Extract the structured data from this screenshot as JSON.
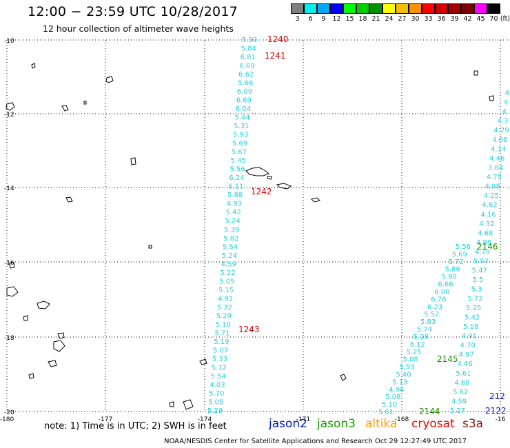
{
  "header": {
    "title": "12:00 − 23:59 UTC 10/28/2017",
    "subtitle": "12 hour collection of altimeter wave heights"
  },
  "scale": {
    "unit": "(ft)",
    "swatches": [
      {
        "label": "3",
        "color": "#7f7f7f"
      },
      {
        "label": "6",
        "color": "#00f0f0"
      },
      {
        "label": "9",
        "color": "#00a8f8"
      },
      {
        "label": "12",
        "color": "#0000ff"
      },
      {
        "label": "15",
        "color": "#00ff00"
      },
      {
        "label": "18",
        "color": "#00cc00"
      },
      {
        "label": "21",
        "color": "#009000"
      },
      {
        "label": "24",
        "color": "#ffff00"
      },
      {
        "label": "27",
        "color": "#f0c000"
      },
      {
        "label": "30",
        "color": "#ff9000"
      },
      {
        "label": "33",
        "color": "#ff0000"
      },
      {
        "label": "36",
        "color": "#d00000"
      },
      {
        "label": "39",
        "color": "#a00000"
      },
      {
        "label": "42",
        "color": "#780000"
      },
      {
        "label": "45",
        "color": "#ff00ff"
      },
      {
        "label": "70",
        "color": "#000000"
      }
    ]
  },
  "map": {
    "lat_labels": [
      "-10",
      "-12",
      "-14",
      "-16",
      "-18",
      "-20"
    ],
    "lon_labels": [
      "-180",
      "-177",
      "-174",
      "-171",
      "-168",
      "-16"
    ],
    "passes": [
      {
        "label": "1240",
        "color": "red"
      },
      {
        "label": "1241",
        "color": "red"
      },
      {
        "label": "1242",
        "color": "red"
      },
      {
        "label": "1243",
        "color": "red"
      },
      {
        "label": "2146",
        "color": "green"
      },
      {
        "label": "2145",
        "color": "green"
      },
      {
        "label": "2144",
        "color": "green"
      },
      {
        "label": "212",
        "color": "blue"
      },
      {
        "label": "2122",
        "color": "blue"
      }
    ],
    "track_a": [
      "5.90",
      "5.84",
      "6.81",
      "6.69",
      "6.62",
      "5.66",
      "6.09",
      "6.69",
      "6.04",
      "5.44",
      "5.31",
      "5.93",
      "5.69",
      "5.67",
      "5.45",
      "5.56",
      "6.24",
      "6.11",
      "5.88",
      "4.93",
      "5.42",
      "5.24",
      "5.39",
      "5.82",
      "5.54",
      "5.24",
      "4.59",
      "5.22",
      "5.05",
      "5.15",
      "4.91",
      "5.32",
      "5.29",
      "5.10",
      "5.71",
      "5.19",
      "5.07",
      "5.33",
      "5.12",
      "5.54",
      "4.03",
      "5.70",
      "5.05",
      "5.29"
    ],
    "track_b": [
      "5.56",
      "5.69",
      "5.72",
      "5.86",
      "5.90",
      "6.66",
      "6.00",
      "6.76",
      "6.23",
      "5.52",
      "5.83",
      "5.74",
      "5.28",
      "6.12",
      "5.25",
      "5.08",
      "5.53",
      "5.40",
      "5.13",
      "4.96",
      "5.08",
      "5.10",
      "5.61"
    ],
    "track_c": [
      "4",
      "4",
      "4",
      "4.3",
      "4.29",
      "4.08",
      "4.14",
      "4.46",
      "3.84",
      "4.75",
      "4.98",
      "4.25",
      "4.62",
      "4.16",
      "4.32",
      "4.68",
      "4.98",
      "4.79",
      "5.52",
      "5.47",
      "5.5",
      "5.3",
      "5.72",
      "5.25",
      "5.42",
      "5.18",
      "4.91",
      "4.70",
      "4.97",
      "4.46",
      "5.61",
      "4.88",
      "5.62",
      "4.59",
      "5.27"
    ]
  },
  "footer": {
    "note": "note:  1) Time is in UTC;  2) SWH is in feet",
    "satellites": [
      {
        "name": "jason2",
        "color": "#0018d8"
      },
      {
        "name": "jason3",
        "color": "#16a000"
      },
      {
        "name": "altika",
        "color": "#ff9c00"
      },
      {
        "name": "cryosat",
        "color": "#ee0000"
      },
      {
        "name": "s3a",
        "color": "#8a1a00"
      }
    ],
    "credit": "NOAA/NESDIS Center for Satellite Applications and Research    Oct 29 12:27:49 UTC 2017"
  }
}
